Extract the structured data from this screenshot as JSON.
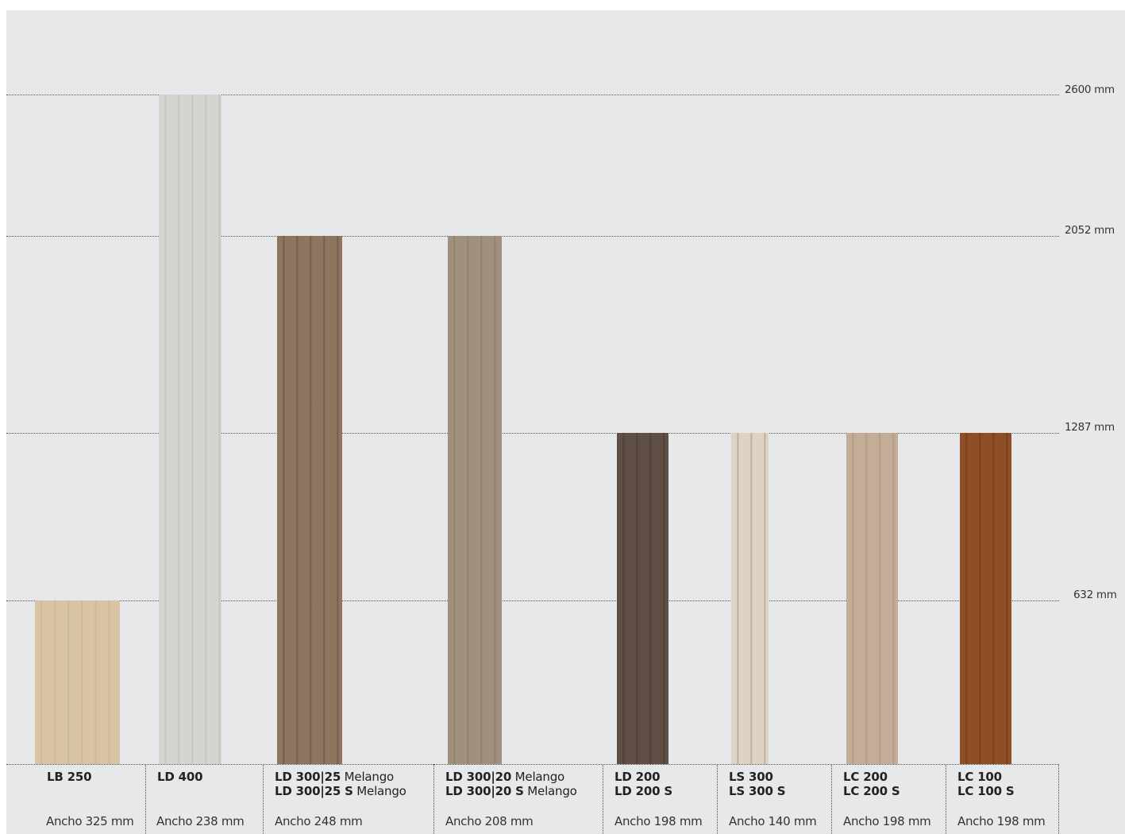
{
  "heights": [
    {
      "label": "2600 mm",
      "value": 2600
    },
    {
      "label": "2052 mm",
      "value": 2052
    },
    {
      "label": "1287 mm",
      "value": 1287
    },
    {
      "label": "632 mm",
      "value": 632
    }
  ],
  "products": [
    {
      "line1": "LB 250",
      "suffix1": "",
      "line2": "",
      "suffix2": "",
      "width": "Ancho 325 mm",
      "height_mm": 632,
      "color": "#d8c4a3",
      "grain": "#cbb592"
    },
    {
      "line1": "LD 400",
      "suffix1": "",
      "line2": "",
      "suffix2": "",
      "width": "Ancho 238 mm",
      "height_mm": 2600,
      "color": "#d6d4d1",
      "grain": "#c3c0bb"
    },
    {
      "line1": "LD 300|25",
      "suffix1": " Melango",
      "line2": "LD 300|25 S",
      "suffix2": " Melango",
      "width": "Ancho 248 mm",
      "height_mm": 2052,
      "color": "#8e7560",
      "grain": "#6f5644"
    },
    {
      "line1": "LD 300|20",
      "suffix1": " Melango",
      "line2": "LD 300|20 S",
      "suffix2": " Melango",
      "width": "Ancho 208 mm",
      "height_mm": 2052,
      "color": "#a0907e",
      "grain": "#8d7d6b"
    },
    {
      "line1": "LD 200",
      "suffix1": "",
      "line2": "LD 200 S",
      "suffix2": "",
      "width": "Ancho 198 mm",
      "height_mm": 1287,
      "color": "#5f4f44",
      "grain": "#4d3f35"
    },
    {
      "line1": "LS 300",
      "suffix1": "",
      "line2": "LS 300 S",
      "suffix2": "",
      "width": "Ancho 140 mm",
      "height_mm": 1287,
      "color": "#ddd2c4",
      "grain": "#b8a58d"
    },
    {
      "line1": "LC 200",
      "suffix1": "",
      "line2": "LC 200 S",
      "suffix2": "",
      "width": "Ancho 198 mm",
      "height_mm": 1287,
      "color": "#c4ad98",
      "grain": "#b19884"
    },
    {
      "line1": "LC 100",
      "suffix1": "",
      "line2": "LC 100 S",
      "suffix2": "",
      "width": "Ancho 198 mm",
      "height_mm": 1287,
      "color": "#8f4f26",
      "grain": "#6e3a1a"
    }
  ]
}
